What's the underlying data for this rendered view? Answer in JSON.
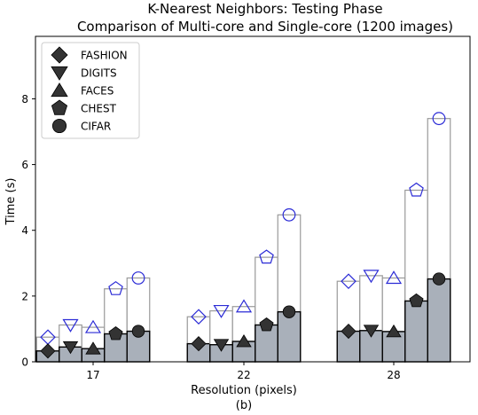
{
  "chart_data": {
    "type": "bar",
    "title": "K-Nearest Neighbors: Testing Phase",
    "subtitle": "Comparison of Multi-core and Single-core (1200 images)",
    "xlabel": "Resolution (pixels)",
    "caption": "(b)",
    "ylabel": "Time (s)",
    "categories": [
      "17",
      "22",
      "28"
    ],
    "ylim": [
      0,
      9.9
    ],
    "yticks": [
      "0",
      "2",
      "4",
      "6",
      "8"
    ],
    "legend_position": "top-left",
    "multi_core_color": "#a9b0ba",
    "single_core_marker_color": "#2b2bd6",
    "multi_core_marker_color": "#333333",
    "series": [
      {
        "name": "FASHION",
        "marker": "diamond",
        "multi_core": [
          0.33,
          0.55,
          0.93
        ],
        "single_core": [
          0.75,
          1.37,
          2.45
        ]
      },
      {
        "name": "DIGITS",
        "marker": "triangle-down",
        "multi_core": [
          0.45,
          0.52,
          0.95
        ],
        "single_core": [
          1.12,
          1.55,
          2.62
        ]
      },
      {
        "name": "FACES",
        "marker": "triangle-up",
        "multi_core": [
          0.4,
          0.62,
          0.92
        ],
        "single_core": [
          1.05,
          1.68,
          2.55
        ]
      },
      {
        "name": "CHEST",
        "marker": "pentagon",
        "multi_core": [
          0.85,
          1.12,
          1.85
        ],
        "single_core": [
          2.22,
          3.18,
          5.22
        ]
      },
      {
        "name": "CIFAR",
        "marker": "circle",
        "multi_core": [
          0.93,
          1.52,
          2.52
        ],
        "single_core": [
          2.55,
          4.47,
          7.4
        ]
      }
    ]
  }
}
